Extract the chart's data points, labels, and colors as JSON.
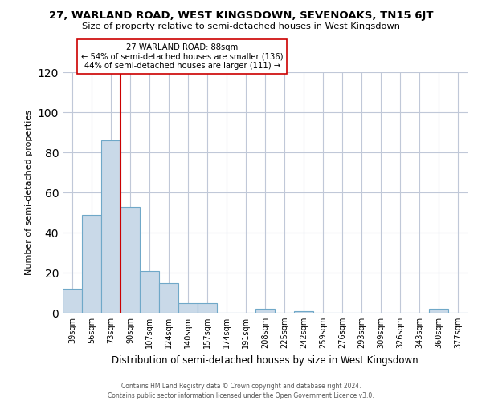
{
  "title": "27, WARLAND ROAD, WEST KINGSDOWN, SEVENOAKS, TN15 6JT",
  "subtitle": "Size of property relative to semi-detached houses in West Kingsdown",
  "xlabel": "Distribution of semi-detached houses by size in West Kingsdown",
  "ylabel": "Number of semi-detached properties",
  "footnote1": "Contains HM Land Registry data © Crown copyright and database right 2024.",
  "footnote2": "Contains public sector information licensed under the Open Government Licence v3.0.",
  "bins": [
    "39sqm",
    "56sqm",
    "73sqm",
    "90sqm",
    "107sqm",
    "124sqm",
    "140sqm",
    "157sqm",
    "174sqm",
    "191sqm",
    "208sqm",
    "225sqm",
    "242sqm",
    "259sqm",
    "276sqm",
    "293sqm",
    "309sqm",
    "326sqm",
    "343sqm",
    "360sqm",
    "377sqm"
  ],
  "values": [
    12,
    49,
    86,
    53,
    21,
    15,
    5,
    5,
    0,
    0,
    2,
    0,
    1,
    0,
    0,
    0,
    0,
    0,
    0,
    2,
    0
  ],
  "bar_color": "#c9d9e8",
  "bar_edge_color": "#6fa8c8",
  "property_label": "27 WARLAND ROAD: 88sqm",
  "annotation_line1": "← 54% of semi-detached houses are smaller (136)",
  "annotation_line2": "44% of semi-detached houses are larger (111) →",
  "vline_color": "#cc0000",
  "vline_x_bin_index": 3,
  "ylim": [
    0,
    120
  ],
  "yticks": [
    0,
    20,
    40,
    60,
    80,
    100,
    120
  ],
  "background_color": "#ffffff",
  "grid_color": "#c0c8d8"
}
